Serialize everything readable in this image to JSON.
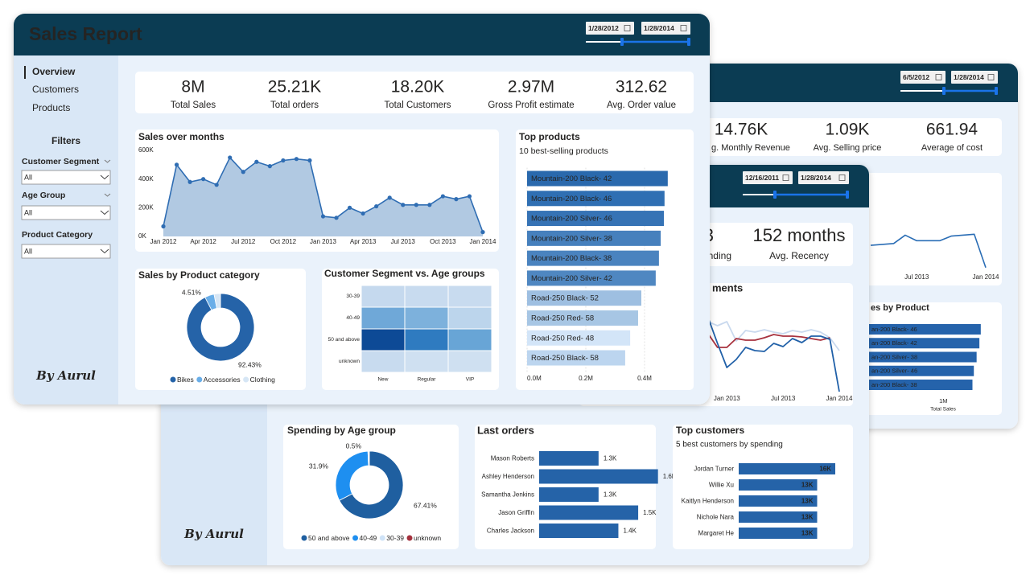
{
  "back_report": {
    "date_from": "6/5/2012",
    "date_to": "1/28/2014",
    "kpis": [
      {
        "value": "14.76K",
        "label": "g. Monthly Revenue"
      },
      {
        "value": "1.09K",
        "label": "Avg. Selling price"
      },
      {
        "value": "661.94",
        "label": "Average of cost"
      }
    ],
    "trend": {
      "type": "line",
      "categories": [
        null,
        null,
        null,
        null,
        "Jul 2013",
        null,
        null,
        null,
        null,
        null,
        "Jan 2014"
      ],
      "series": [
        {
          "color": "#2a6db5",
          "values": [
            26,
            27,
            28,
            37,
            31,
            31,
            31,
            36,
            37,
            38,
            2
          ]
        }
      ],
      "ylim": [
        0,
        100
      ]
    },
    "product_sales": {
      "type": "hbar",
      "title": "es by Product",
      "categories": [
        "an-200 Black- 46",
        "an-200 Black- 42",
        "an-200 Silver- 38",
        "an-200 Silver- 46",
        "an-200 Black- 38"
      ],
      "values": [
        1270000,
        1260000,
        1240000,
        1220000,
        1210000
      ],
      "color": "#2563ab",
      "xlim": [
        0,
        1300000
      ],
      "xticks": [
        {
          "value": 1000000,
          "label": "1M"
        }
      ],
      "xlabel": "Total Sales"
    }
  },
  "customer_report": {
    "date_from": "12/16/2011",
    "date_to": "1/28/2014",
    "signature": "By Aurul",
    "kpis": [
      {
        "value": "3",
        "label": "nding"
      },
      {
        "value": "152 months",
        "label": "Avg. Recency"
      }
    ],
    "trend": {
      "type": "line",
      "title": "ments",
      "categories": [
        null,
        null,
        "Jan 2013",
        null,
        null,
        null,
        null,
        null,
        "Jul 2013",
        null,
        null,
        null,
        null,
        null,
        "Jan 2014"
      ],
      "series": [
        {
          "color": "#c9d9ee",
          "values": [
            90,
            85,
            90,
            66,
            79,
            77,
            80,
            77,
            75,
            79,
            77,
            80,
            77,
            70,
            54
          ]
        },
        {
          "color": "#a8323e",
          "values": [
            75,
            58,
            58,
            69,
            67,
            67,
            70,
            74,
            72,
            72,
            71,
            69,
            67,
            70,
            null
          ]
        },
        {
          "color": "#2060a8",
          "values": [
            95,
            63,
            33,
            43,
            58,
            54,
            53,
            63,
            59,
            69,
            64,
            72,
            72,
            68,
            3
          ]
        }
      ],
      "ylim": [
        0,
        110
      ]
    },
    "spending_by_age": {
      "type": "donut",
      "title": "Spending by Age group",
      "categories": [
        "50 and above",
        "40-49",
        "30-39",
        "unknown"
      ],
      "values": [
        67.41,
        31.9,
        0.5,
        0.19
      ],
      "value_labels": [
        "67.41%",
        "31.9%",
        "0.5%",
        null
      ],
      "colors": [
        "#1f5fa0",
        "#1e8ff0",
        "#cfe3f7",
        "#a4313d"
      ]
    },
    "last_orders": {
      "type": "hbar",
      "title": "Last orders",
      "categories": [
        "Mason Roberts",
        "Ashley Henderson",
        "Samantha Jenkins",
        "Jason Griffin",
        "Charles Jackson"
      ],
      "values": [
        1300,
        1600,
        1300,
        1500,
        1400
      ],
      "value_labels": [
        "1.3K",
        "1.6K",
        "1.3K",
        "1.5K",
        "1.4K"
      ],
      "color": "#2563a8",
      "xlim": [
        1000,
        1650
      ]
    },
    "top_customers": {
      "type": "hbar",
      "title": "Top customers",
      "subtitle": "5 best customers by spending",
      "categories": [
        "Jordan Turner",
        "Willie Xu",
        "Kaitlyn Henderson",
        "Nichole Nara",
        "Margaret He"
      ],
      "values": [
        16000,
        13000,
        13000,
        13000,
        13000
      ],
      "value_labels": [
        "16K",
        "13K",
        "13K",
        "13K",
        "13K"
      ],
      "color": "#2563a8",
      "xlim": [
        0,
        16000
      ]
    }
  },
  "sales_report": {
    "title": "Sales Report",
    "date_from": "1/28/2012",
    "date_to": "1/28/2014",
    "nav": [
      "Overview",
      "Customers",
      "Products"
    ],
    "filters": {
      "title": "Filters",
      "items": [
        {
          "label": "Customer Segment",
          "selected": "All"
        },
        {
          "label": "Age Group",
          "selected": "All"
        },
        {
          "label": "Product Category",
          "selected": "All"
        }
      ]
    },
    "signature": "By Aurul",
    "kpis": [
      {
        "value": "8M",
        "label": "Total Sales"
      },
      {
        "value": "25.21K",
        "label": "Total orders"
      },
      {
        "value": "18.20K",
        "label": "Total Customers"
      },
      {
        "value": "2.97M",
        "label": "Gross Profit estimate"
      },
      {
        "value": "312.62",
        "label": "Avg. Order value"
      }
    ],
    "sales_over_months": {
      "type": "area",
      "title": "Sales over months",
      "categories": [
        "Jan 2012",
        null,
        null,
        "Apr 2012",
        null,
        null,
        "Jul 2012",
        null,
        null,
        "Oct 2012",
        null,
        null,
        "Jan 2013",
        null,
        null,
        "Apr 2013",
        null,
        null,
        "Jul 2013",
        null,
        null,
        "Oct 2013",
        null,
        null,
        "Jan 2014"
      ],
      "values": [
        70000,
        500000,
        380000,
        400000,
        360000,
        550000,
        450000,
        520000,
        490000,
        530000,
        540000,
        530000,
        140000,
        130000,
        200000,
        160000,
        210000,
        270000,
        220000,
        220000,
        220000,
        280000,
        260000,
        280000,
        30000
      ],
      "color": "#2f6db3",
      "fill": "#a9c3df",
      "ylim": [
        0,
        600000
      ],
      "yticks": [
        {
          "value": 0,
          "label": "0K"
        },
        {
          "value": 200000,
          "label": "200K"
        },
        {
          "value": 400000,
          "label": "400K"
        },
        {
          "value": 600000,
          "label": "600K"
        }
      ]
    },
    "top_products": {
      "type": "hbar",
      "title": "Top products",
      "subtitle": "10 best-selling products",
      "categories": [
        "Mountain-200 Black- 42",
        "Mountain-200 Black- 46",
        "Mountain-200 Silver- 46",
        "Mountain-200 Silver- 38",
        "Mountain-200 Black- 38",
        "Mountain-200 Silver- 42",
        "Road-250 Black- 52",
        "Road-250 Red- 58",
        "Road-250 Red- 48",
        "Road-250 Black- 58"
      ],
      "values": [
        479000,
        468000,
        466000,
        455000,
        449000,
        438000,
        389000,
        378000,
        351000,
        334000
      ],
      "colors": [
        "#2a69ad",
        "#2f6fb3",
        "#3673b5",
        "#4680bd",
        "#4a83bf",
        "#4f87c1",
        "#9ebfe1",
        "#a7c6e4",
        "#d3e5f8",
        "#bcd5ef"
      ],
      "xlim": [
        0,
        500000
      ],
      "xticks": [
        {
          "value": 0,
          "label": "0.0M"
        },
        {
          "value": 200000,
          "label": "0.2M"
        },
        {
          "value": 400000,
          "label": "0.4M"
        }
      ],
      "grid": true
    },
    "category_sales": {
      "type": "donut",
      "title": "Sales by Product category",
      "categories": [
        "Bikes",
        "Accessories",
        "Clothing"
      ],
      "values": [
        92.43,
        4.51,
        3.06
      ],
      "value_labels": [
        "92.43%",
        "4.51%",
        null
      ],
      "colors": [
        "#2563a8",
        "#6aaee8",
        "#d6e6f5"
      ]
    },
    "segment_age": {
      "type": "heatmap",
      "title": "Customer Segment vs. Age groups",
      "rows": [
        "30-39",
        "40-49",
        "50 and above",
        "unknown"
      ],
      "columns": [
        "New",
        "Regular",
        "VIP"
      ],
      "colors": [
        [
          "#c5d9ee",
          "#c8dbef",
          "#c8dbef"
        ],
        [
          "#6fa8d8",
          "#7db1dc",
          "#bcd5ec"
        ],
        [
          "#0d4a96",
          "#2f7bc0",
          "#68a5d6"
        ],
        [
          "#c8dbef",
          "#cfe0f1",
          "#cfe0f1"
        ]
      ]
    }
  }
}
